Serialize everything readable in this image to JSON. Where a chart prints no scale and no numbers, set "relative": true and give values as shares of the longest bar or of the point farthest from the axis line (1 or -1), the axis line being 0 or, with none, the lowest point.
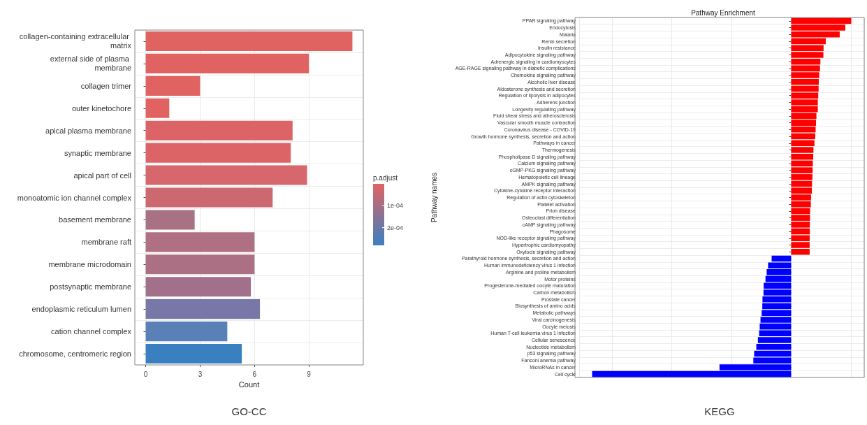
{
  "chart_data": [
    {
      "type": "bar",
      "orientation": "horizontal",
      "xlabel": "Count",
      "legend_title": "p.adjust",
      "annotations": [
        "GO-CC"
      ],
      "categories": [
        "collagen-containing extracellular matrix",
        "external side of plasma membrane",
        "collagen trimer",
        "outer kinetochore",
        "apical plasma membrane",
        "synaptic membrane",
        "apical part of cell",
        "monoatomic ion channel complex",
        "basement membrane",
        "membrane raft",
        "membrane microdomain",
        "postsynaptic membrane",
        "endoplasmic reticulum lumen",
        "cation channel complex",
        "chromosome, centromeric region"
      ],
      "values": [
        11.4,
        9.0,
        3.0,
        1.3,
        8.1,
        8.0,
        8.9,
        7.0,
        2.7,
        6.0,
        6.0,
        5.8,
        6.3,
        4.5,
        5.3
      ],
      "colors": [
        "#e06362",
        "#e06362",
        "#e06362",
        "#e06362",
        "#dc6466",
        "#dc6466",
        "#d6676c",
        "#cc6870",
        "#a87284",
        "#b07084",
        "#ac7084",
        "#a2708a",
        "#7878a8",
        "#5a80b8",
        "#3a80c0"
      ],
      "xlim": [
        -0.6,
        12
      ],
      "xticks": [
        0,
        3,
        6,
        9
      ],
      "clim": [
        3e-06,
        0.00028
      ],
      "cticks": [
        {
          "value": 0.0001,
          "label": "1e-04"
        },
        {
          "value": 0.0002,
          "label": "2e-04"
        }
      ],
      "grid": true
    },
    {
      "type": "bar",
      "orientation": "horizontal",
      "title": "Pathway Enrichment",
      "ylabel": "Pathway names",
      "annotations": [
        "KEGG"
      ],
      "relative": true,
      "grid": true,
      "categories": [
        "PPAR signaling pathway",
        "Endocytosis",
        "Malaria",
        "Renin secretion",
        "Insulin resistance",
        "Adipocytokine signaling pathway",
        "Adrenergic signaling in cardiomyocytes",
        "AGE-RAGE signaling pathway in diabetic complications",
        "Chemokine signaling pathway",
        "Alcoholic liver disease",
        "Aldosterone synthesis and secretion",
        "Regulation of lipolysis in adipocytes",
        "Adherens junction",
        "Longevity regulating pathway",
        "Fluid shear stress and atherosclerosis",
        "Vascular smooth muscle contraction",
        "Coronavirus disease - COVID-19",
        "Growth hormone synthesis, secretion and action",
        "Pathways in cancer",
        "Thermogenesis",
        "Phospholipase D signaling pathway",
        "Calcium signaling pathway",
        "cGMP-PKG signaling pathway",
        "Hematopoietic cell lineage",
        "AMPK signaling pathway",
        "Cytokine-cytokine receptor interaction",
        "Regulation of actin cytoskeleton",
        "Platelet activation",
        "Prion disease",
        "Osteoclast differentiation",
        "cAMP signaling pathway",
        "Phagosome",
        "NOD-like receptor signaling pathway",
        "Hypertrophic cardiomyopathy",
        "Oxytocin signaling pathway",
        "Parathyroid hormone synthesis, secretion and action",
        "Human immunodeficiency virus 1 infection",
        "Arginine and proline metabolism",
        "Motor proteins",
        "Progesterone-mediated oocyte maturation",
        "Carbon metabolism",
        "Prostate cancer",
        "Biosynthesis of amino acids",
        "Metabolic pathways",
        "Viral carcinogenesis",
        "Oocyte meiosis",
        "Human T-cell leukemia virus 1 infection",
        "Cellular senescence",
        "Nucleotide metabolism",
        "p53 signaling pathway",
        "Fanconi anemia pathway",
        "MicroRNAs in cancer",
        "Cell cycle"
      ],
      "values": [
        0.302,
        0.272,
        0.244,
        0.174,
        0.163,
        0.162,
        0.147,
        0.145,
        0.141,
        0.139,
        0.138,
        0.136,
        0.134,
        0.134,
        0.127,
        0.125,
        0.123,
        0.121,
        0.117,
        0.112,
        0.111,
        0.109,
        0.108,
        0.107,
        0.105,
        0.104,
        0.1,
        0.099,
        0.095,
        0.095,
        0.094,
        0.094,
        0.093,
        0.093,
        0.093,
        -0.098,
        -0.116,
        -0.123,
        -0.129,
        -0.138,
        -0.139,
        -0.144,
        -0.145,
        -0.148,
        -0.154,
        -0.158,
        -0.161,
        -0.167,
        -0.175,
        -0.186,
        -0.19,
        -0.36,
        -1
      ],
      "colors": [
        "#ff0000",
        "#ff0000",
        "#ff0000",
        "#ff0000",
        "#ff0000",
        "#ff0000",
        "#ff0000",
        "#ff0000",
        "#ff0000",
        "#ff0000",
        "#ff0000",
        "#ff0000",
        "#ff0000",
        "#ff0000",
        "#ff0000",
        "#ff0000",
        "#ff0000",
        "#ff0000",
        "#ff0000",
        "#ff0000",
        "#ff0000",
        "#ff0000",
        "#ff0000",
        "#ff0000",
        "#ff0000",
        "#ff0000",
        "#ff0000",
        "#ff0000",
        "#ff0000",
        "#ff0000",
        "#ff0000",
        "#ff0000",
        "#ff0000",
        "#ff0000",
        "#ff0000",
        "#0000ff",
        "#0000ff",
        "#0000ff",
        "#0000ff",
        "#0000ff",
        "#0000ff",
        "#0000ff",
        "#0000ff",
        "#0000ff",
        "#0000ff",
        "#0000ff",
        "#0000ff",
        "#0000ff",
        "#0000ff",
        "#0000ff",
        "#0000ff",
        "#0000ff",
        "#0000ff"
      ]
    }
  ]
}
